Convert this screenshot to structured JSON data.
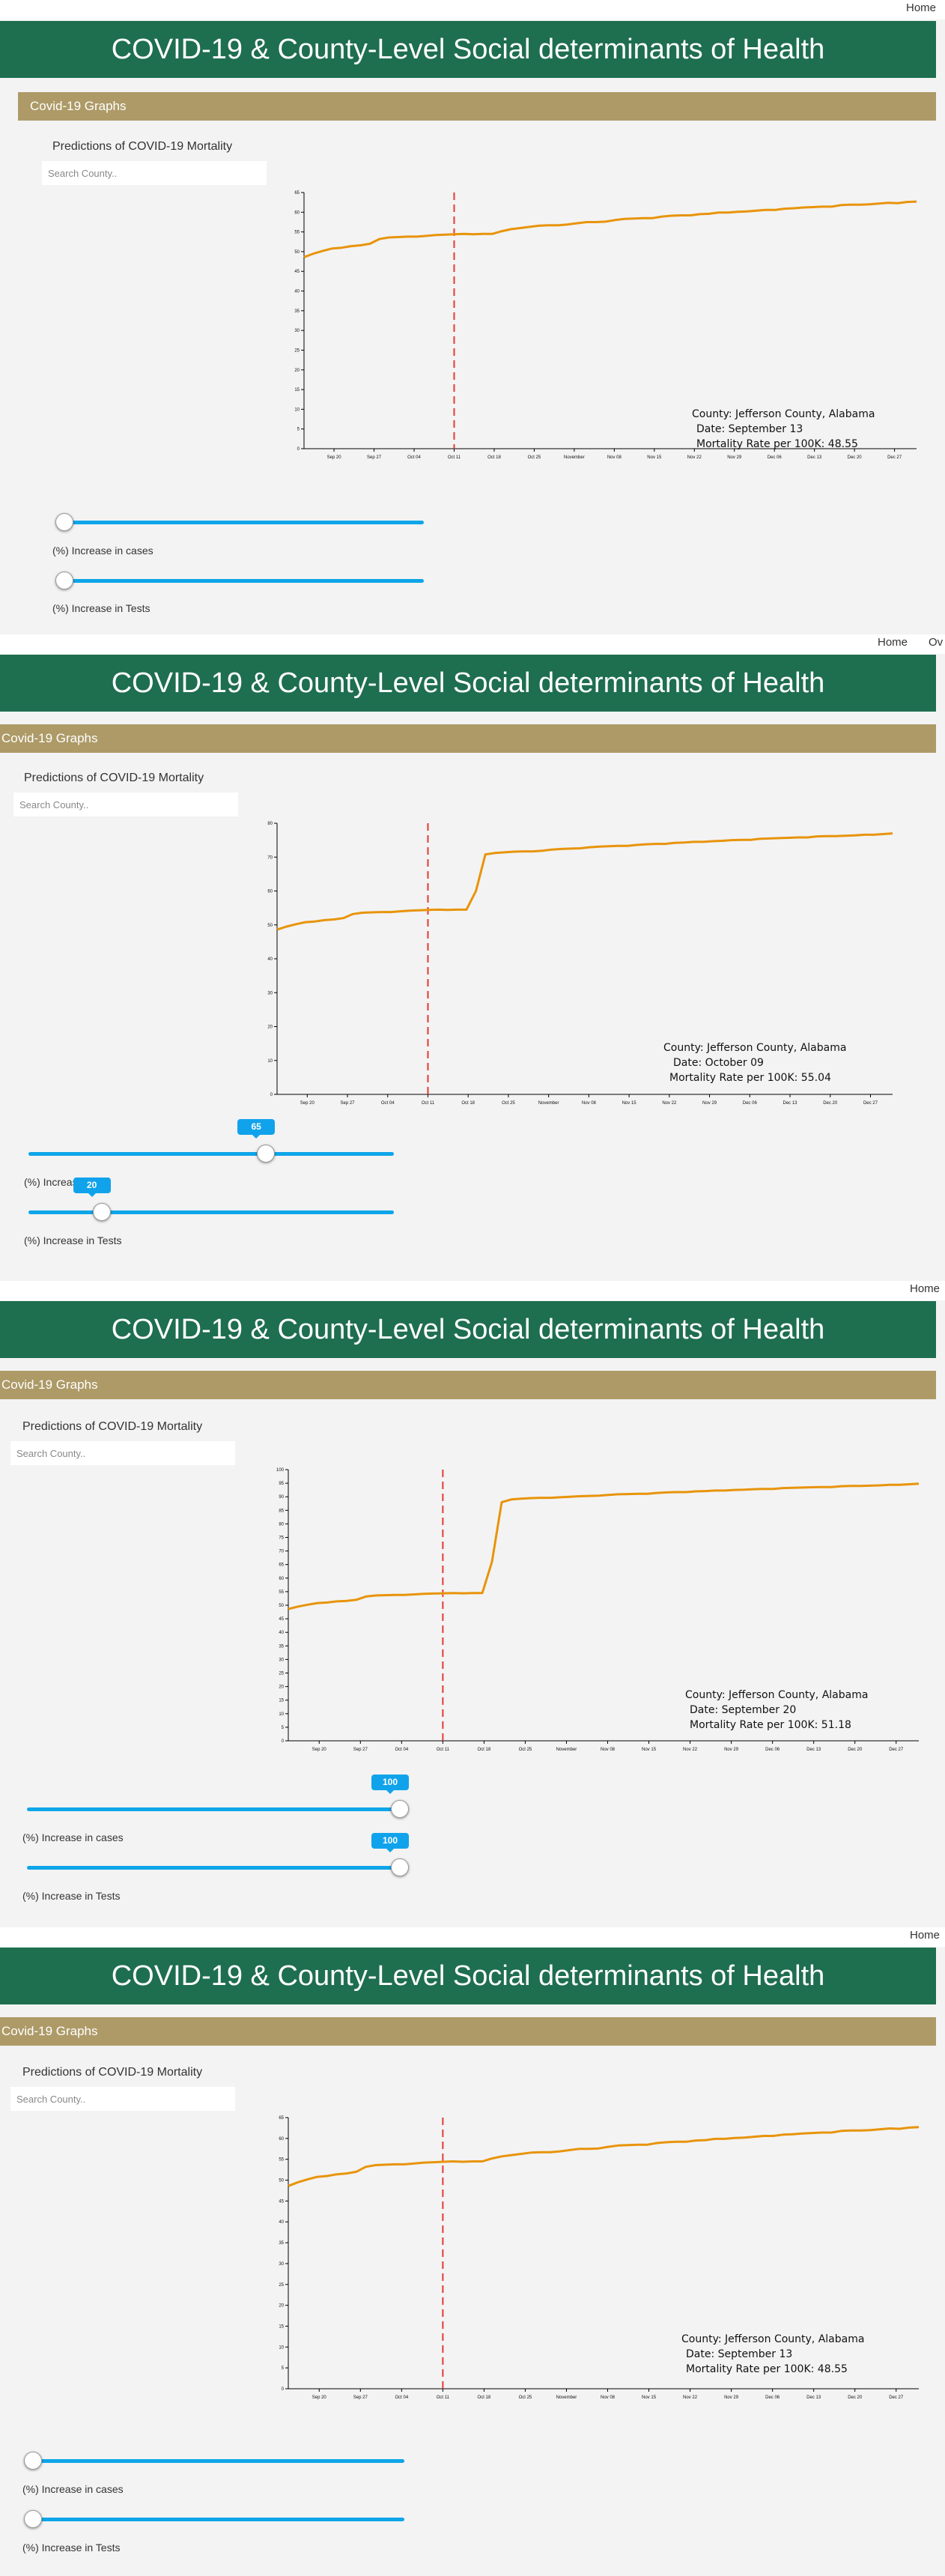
{
  "nav": {
    "home": "Home",
    "ov": "Ov"
  },
  "header": {
    "title": "COVID-19 & County-Level Social determinants of Health"
  },
  "graphs_bar": {
    "label": "Covid-19 Graphs"
  },
  "prediction": {
    "title": "Predictions of COVID-19 Mortality"
  },
  "search": {
    "placeholder": "Search County.."
  },
  "sliders": {
    "cases_label": "(%) Increase in cases",
    "tests_label": "(%) Increase in Tests"
  },
  "colors": {
    "banner": "#1e6e50",
    "graphs_bar": "#ad9a67",
    "line": "#e8940a",
    "divider": "#e53935",
    "slider": "#0ea5e9"
  },
  "icons": {
    "slider_thumb": "circle-thumb-icon"
  },
  "panels": [
    {
      "readout": {
        "county": "County: Jefferson County, Alabama",
        "date": "Date: September 13",
        "rate": "Mortality Rate per 100K: 48.55"
      },
      "sliders": {
        "cases": 0,
        "tests": 0,
        "cases_bubble": "",
        "tests_bubble": ""
      }
    },
    {
      "readout": {
        "county": "County: Jefferson County, Alabama",
        "date": "Date: October 09",
        "rate": "Mortality Rate per 100K: 55.04"
      },
      "sliders": {
        "cases": 65,
        "tests": 20,
        "cases_bubble": "65",
        "tests_bubble": "20"
      },
      "cases_label_visible": "(%) Increase"
    },
    {
      "readout": {
        "county": "County: Jefferson County, Alabama",
        "date": "Date: September 20",
        "rate": "Mortality Rate per 100K: 51.18"
      },
      "sliders": {
        "cases": 100,
        "tests": 100,
        "cases_bubble": "100",
        "tests_bubble": "100"
      }
    },
    {
      "readout": {
        "county": "County: Jefferson County, Alabama",
        "date": "Date: September 13",
        "rate": "Mortality Rate per 100K: 48.55"
      },
      "sliders": {
        "cases": 0,
        "tests": 0,
        "cases_bubble": "",
        "tests_bubble": ""
      }
    }
  ],
  "chart_data": [
    {
      "type": "line",
      "x_tick_labels": [
        "Sep 20",
        "Sep 27",
        "Oct 04",
        "Oct 11",
        "Oct 18",
        "Oct 25",
        "November",
        "Nov 08",
        "Nov 15",
        "Nov 22",
        "Nov 29",
        "Dec 06",
        "Dec 13",
        "Dec 20",
        "Dec 27"
      ],
      "y_ticks": [
        0,
        5,
        10,
        15,
        20,
        25,
        30,
        35,
        40,
        45,
        50,
        55,
        60,
        65
      ],
      "ylim": [
        0,
        65
      ],
      "divider_tick": "Oct 11",
      "values": [
        48.6,
        49.5,
        50.2,
        50.8,
        51.0,
        51.4,
        51.6,
        52.0,
        53.2,
        53.6,
        53.7,
        53.8,
        53.8,
        54.0,
        54.2,
        54.3,
        54.4,
        54.5,
        54.4,
        54.5,
        54.5,
        55.2,
        55.7,
        56.0,
        56.3,
        56.6,
        56.7,
        56.7,
        56.9,
        57.2,
        57.5,
        57.5,
        57.6,
        58.0,
        58.3,
        58.4,
        58.5,
        58.5,
        58.9,
        59.1,
        59.2,
        59.2,
        59.5,
        59.6,
        59.9,
        59.9,
        60.1,
        60.2,
        60.4,
        60.6,
        60.6,
        60.9,
        61.0,
        61.2,
        61.3,
        61.4,
        61.4,
        61.8,
        61.9,
        61.9,
        62.0,
        62.2,
        62.4,
        62.3,
        62.6,
        62.7
      ]
    },
    {
      "type": "line",
      "x_tick_labels": [
        "Sep 20",
        "Sep 27",
        "Oct 04",
        "Oct 11",
        "Oct 18",
        "Oct 25",
        "November",
        "Nov 08",
        "Nov 15",
        "Nov 22",
        "Nov 29",
        "Dec 06",
        "Dec 13",
        "Dec 20",
        "Dec 27"
      ],
      "y_ticks": [
        0,
        10,
        20,
        30,
        40,
        50,
        60,
        70,
        80
      ],
      "ylim": [
        0,
        80
      ],
      "divider_tick": "Oct 11",
      "values": [
        48.6,
        49.5,
        50.2,
        50.8,
        51.0,
        51.4,
        51.6,
        52.0,
        53.2,
        53.6,
        53.7,
        53.8,
        53.8,
        54.0,
        54.2,
        54.3,
        54.4,
        54.5,
        54.4,
        54.5,
        54.5,
        60.0,
        70.8,
        71.2,
        71.4,
        71.6,
        71.7,
        71.7,
        71.9,
        72.2,
        72.4,
        72.5,
        72.6,
        72.9,
        73.1,
        73.2,
        73.3,
        73.3,
        73.6,
        73.8,
        73.9,
        73.9,
        74.2,
        74.3,
        74.5,
        74.5,
        74.7,
        74.8,
        75.0,
        75.1,
        75.1,
        75.4,
        75.5,
        75.6,
        75.7,
        75.8,
        75.8,
        76.1,
        76.2,
        76.2,
        76.3,
        76.4,
        76.6,
        76.6,
        76.8,
        77.0
      ]
    },
    {
      "type": "line",
      "x_tick_labels": [
        "Sep 20",
        "Sep 27",
        "Oct 04",
        "Oct 11",
        "Oct 18",
        "Oct 25",
        "November",
        "Nov 08",
        "Nov 15",
        "Nov 22",
        "Nov 29",
        "Dec 06",
        "Dec 13",
        "Dec 20",
        "Dec 27"
      ],
      "y_ticks": [
        0,
        5,
        10,
        15,
        20,
        25,
        30,
        35,
        40,
        45,
        50,
        55,
        60,
        65,
        70,
        75,
        80,
        85,
        90,
        95,
        100
      ],
      "ylim": [
        0,
        100
      ],
      "divider_tick": "Oct 11",
      "values": [
        48.6,
        49.5,
        50.2,
        50.8,
        51.0,
        51.4,
        51.6,
        52.0,
        53.2,
        53.6,
        53.7,
        53.8,
        53.8,
        54.0,
        54.2,
        54.3,
        54.4,
        54.5,
        54.4,
        54.5,
        54.5,
        66.0,
        88.0,
        89.0,
        89.3,
        89.5,
        89.6,
        89.6,
        89.8,
        90.0,
        90.2,
        90.3,
        90.4,
        90.7,
        90.9,
        91.0,
        91.1,
        91.1,
        91.4,
        91.6,
        91.7,
        91.7,
        92.0,
        92.1,
        92.3,
        92.3,
        92.5,
        92.6,
        92.8,
        92.9,
        92.9,
        93.2,
        93.3,
        93.4,
        93.5,
        93.6,
        93.6,
        93.9,
        94.0,
        94.0,
        94.1,
        94.2,
        94.4,
        94.4,
        94.6,
        94.8
      ]
    },
    {
      "type": "line",
      "x_tick_labels": [
        "Sep 20",
        "Sep 27",
        "Oct 04",
        "Oct 11",
        "Oct 18",
        "Oct 25",
        "November",
        "Nov 08",
        "Nov 15",
        "Nov 22",
        "Nov 29",
        "Dec 06",
        "Dec 13",
        "Dec 20",
        "Dec 27"
      ],
      "y_ticks": [
        0,
        5,
        10,
        15,
        20,
        25,
        30,
        35,
        40,
        45,
        50,
        55,
        60,
        65
      ],
      "ylim": [
        0,
        65
      ],
      "divider_tick": "Oct 11",
      "values": [
        48.6,
        49.5,
        50.2,
        50.8,
        51.0,
        51.4,
        51.6,
        52.0,
        53.2,
        53.6,
        53.7,
        53.8,
        53.8,
        54.0,
        54.2,
        54.3,
        54.4,
        54.5,
        54.4,
        54.5,
        54.5,
        55.2,
        55.7,
        56.0,
        56.3,
        56.6,
        56.7,
        56.7,
        56.9,
        57.2,
        57.5,
        57.5,
        57.6,
        58.0,
        58.3,
        58.4,
        58.5,
        58.5,
        58.9,
        59.1,
        59.2,
        59.2,
        59.5,
        59.6,
        59.9,
        59.9,
        60.1,
        60.2,
        60.4,
        60.6,
        60.6,
        60.9,
        61.0,
        61.2,
        61.3,
        61.4,
        61.4,
        61.8,
        61.9,
        61.9,
        62.0,
        62.2,
        62.4,
        62.3,
        62.6,
        62.7
      ]
    }
  ]
}
